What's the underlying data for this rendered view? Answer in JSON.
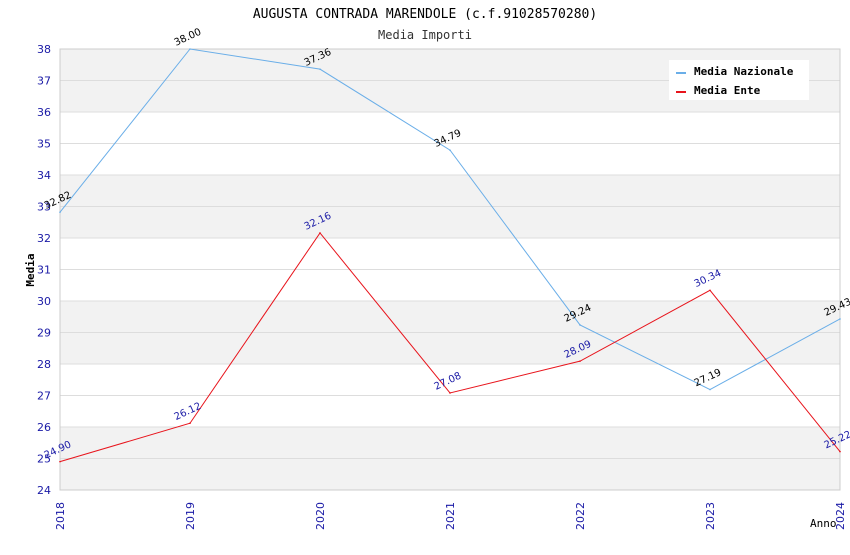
{
  "chart_data": {
    "type": "line",
    "title": "AUGUSTA CONTRADA MARENDOLE (c.f.91028570280)",
    "subtitle": "Media Importi",
    "xlabel": "Anno",
    "ylabel": "Media",
    "categories": [
      "2018",
      "2019",
      "2020",
      "2021",
      "2022",
      "2023",
      "2024"
    ],
    "ylim": [
      24,
      38
    ],
    "yticks": [
      24,
      25,
      26,
      27,
      28,
      29,
      30,
      31,
      32,
      33,
      34,
      35,
      36,
      37,
      38
    ],
    "grid": true,
    "legend_position": "top-right",
    "series": [
      {
        "name": "Media Nazionale",
        "color": "#6aaee8",
        "label_color": "#000000",
        "values": [
          32.82,
          38.0,
          37.36,
          34.79,
          29.24,
          27.19,
          29.43
        ],
        "labels": [
          "32.82",
          "38.00",
          "37.36",
          "34.79",
          "29.24",
          "27.19",
          "29.43"
        ]
      },
      {
        "name": "Media Ente",
        "color": "#e8141c",
        "label_color": "#1a1aa6",
        "values": [
          24.9,
          26.12,
          32.16,
          27.08,
          28.09,
          30.34,
          25.22
        ],
        "labels": [
          "24.90",
          "26.12",
          "32.16",
          "27.08",
          "28.09",
          "30.34",
          "25.22"
        ]
      }
    ]
  }
}
